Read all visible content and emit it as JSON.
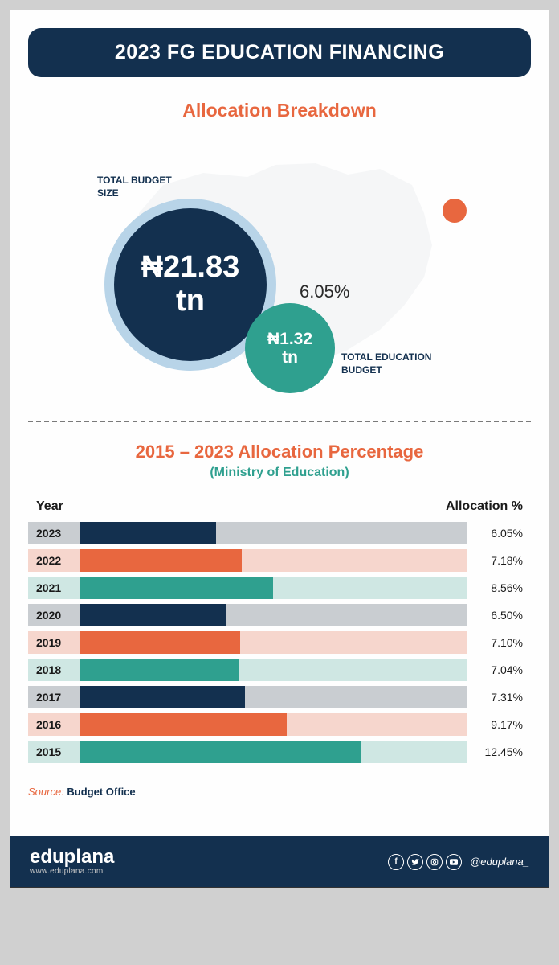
{
  "header": {
    "title": "2023 FG EDUCATION FINANCING"
  },
  "allocation": {
    "subtitle": "Allocation Breakdown",
    "total_budget": {
      "label": "TOTAL BUDGET\nSIZE",
      "value": "₦21.83\ntn",
      "bg": "#13304f",
      "ring": "#b8d4e8"
    },
    "education_budget": {
      "label": "TOTAL EDUCATION\nBUDGET",
      "value": "₦1.32\ntn",
      "bg": "#2fa08f"
    },
    "pct_label": "6.05%",
    "map_fill": "#e5e9ec",
    "dot_color": "#e8673f"
  },
  "chart": {
    "title": "2015 – 2023 Allocation Percentage",
    "subtitle": "(Ministry of Education)",
    "header_year": "Year",
    "header_alloc": "Allocation %",
    "max_scale": 13.0,
    "bar_track_width_pct": 76,
    "colors": {
      "navy": {
        "year_bg": "#c9cdd1",
        "track_bg": "#c9cdd1",
        "fill": "#13304f"
      },
      "orange": {
        "year_bg": "#f6d6cd",
        "track_bg": "#f6d6cd",
        "fill": "#e8673f"
      },
      "teal": {
        "year_bg": "#cfe7e3",
        "track_bg": "#cfe7e3",
        "fill": "#2fa08f"
      }
    },
    "rows": [
      {
        "year": "2023",
        "pct": 6.05,
        "label": "6.05%",
        "scheme": "navy"
      },
      {
        "year": "2022",
        "pct": 7.18,
        "label": "7.18%",
        "scheme": "orange"
      },
      {
        "year": "2021",
        "pct": 8.56,
        "label": "8.56%",
        "scheme": "teal"
      },
      {
        "year": "2020",
        "pct": 6.5,
        "label": "6.50%",
        "scheme": "navy"
      },
      {
        "year": "2019",
        "pct": 7.1,
        "label": "7.10%",
        "scheme": "orange"
      },
      {
        "year": "2018",
        "pct": 7.04,
        "label": "7.04%",
        "scheme": "teal"
      },
      {
        "year": "2017",
        "pct": 7.31,
        "label": "7.31%",
        "scheme": "navy"
      },
      {
        "year": "2016",
        "pct": 9.17,
        "label": "9.17%",
        "scheme": "orange"
      },
      {
        "year": "2015",
        "pct": 12.45,
        "label": "12.45%",
        "scheme": "teal"
      }
    ]
  },
  "source": {
    "prefix": "Source: ",
    "name": "Budget Office"
  },
  "footer": {
    "brand": "eduplana",
    "url": "www.eduplana.com",
    "handle": "@eduplana_",
    "icons": [
      "f",
      "t",
      "ig",
      "yt"
    ]
  }
}
